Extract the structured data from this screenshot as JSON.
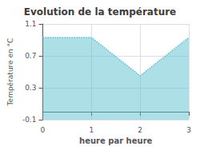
{
  "chart_data": {
    "type": "area",
    "title": "Evolution de la température",
    "xlabel": "heure par heure",
    "ylabel": "Température en °C",
    "x": [
      0,
      1,
      2,
      3
    ],
    "values": [
      0.93,
      0.93,
      0.45,
      0.93
    ],
    "xlim": [
      0,
      3
    ],
    "ylim": [
      -0.1,
      1.1
    ],
    "xticks": [
      0,
      1,
      2,
      3
    ],
    "yticks": [
      -0.1,
      0.3,
      0.7,
      1.1
    ],
    "grid": true,
    "color": "#5bbfcf",
    "line_style": "dotted"
  }
}
